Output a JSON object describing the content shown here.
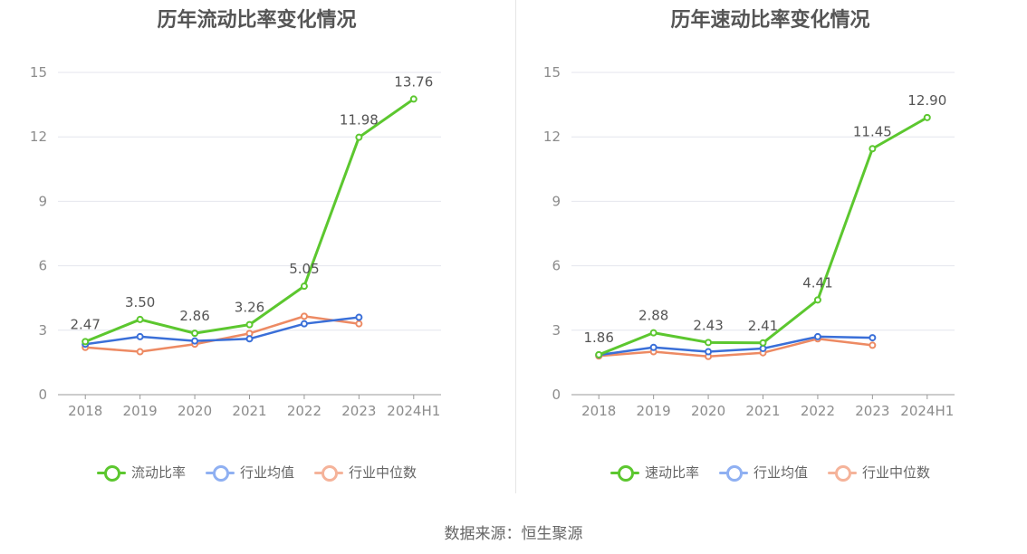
{
  "colors": {
    "primary": "#5cc72f",
    "industry_avg": "#3a6fd8",
    "industry_median": "#ed8a63",
    "legend_avg": "#8fb0f2",
    "legend_median": "#f5b39a",
    "grid": "#e4e6ee",
    "axis": "#999999"
  },
  "source": "数据来源：恒生聚源",
  "chart_data": [
    {
      "type": "line",
      "title": "历年流动比率变化情况",
      "categories": [
        "2018",
        "2019",
        "2020",
        "2021",
        "2022",
        "2023",
        "2024H1"
      ],
      "ylim": [
        0,
        15
      ],
      "yticks": [
        0,
        3,
        6,
        9,
        12,
        15
      ],
      "grid": true,
      "legend_position": "bottom",
      "series": [
        {
          "name": "流动比率",
          "values": [
            2.47,
            3.5,
            2.86,
            3.26,
            5.05,
            11.98,
            13.76
          ],
          "labels": [
            "2.47",
            "3.50",
            "2.86",
            "3.26",
            "5.05",
            "11.98",
            "13.76"
          ]
        },
        {
          "name": "行业均值",
          "values": [
            2.35,
            2.7,
            2.5,
            2.6,
            3.3,
            3.6,
            null
          ]
        },
        {
          "name": "行业中位数",
          "values": [
            2.2,
            2.0,
            2.35,
            2.85,
            3.65,
            3.3,
            null
          ]
        }
      ]
    },
    {
      "type": "line",
      "title": "历年速动比率变化情况",
      "categories": [
        "2018",
        "2019",
        "2020",
        "2021",
        "2022",
        "2023",
        "2024H1"
      ],
      "ylim": [
        0,
        15
      ],
      "yticks": [
        0,
        3,
        6,
        9,
        12,
        15
      ],
      "grid": true,
      "legend_position": "bottom",
      "series": [
        {
          "name": "速动比率",
          "values": [
            1.86,
            2.88,
            2.43,
            2.41,
            4.41,
            11.45,
            12.9
          ],
          "labels": [
            "1.86",
            "2.88",
            "2.43",
            "2.41",
            "4.41",
            "11.45",
            "12.90"
          ]
        },
        {
          "name": "行业均值",
          "values": [
            1.85,
            2.2,
            2.0,
            2.15,
            2.7,
            2.65,
            null
          ]
        },
        {
          "name": "行业中位数",
          "values": [
            1.8,
            2.0,
            1.78,
            1.95,
            2.6,
            2.3,
            null
          ]
        }
      ]
    }
  ]
}
